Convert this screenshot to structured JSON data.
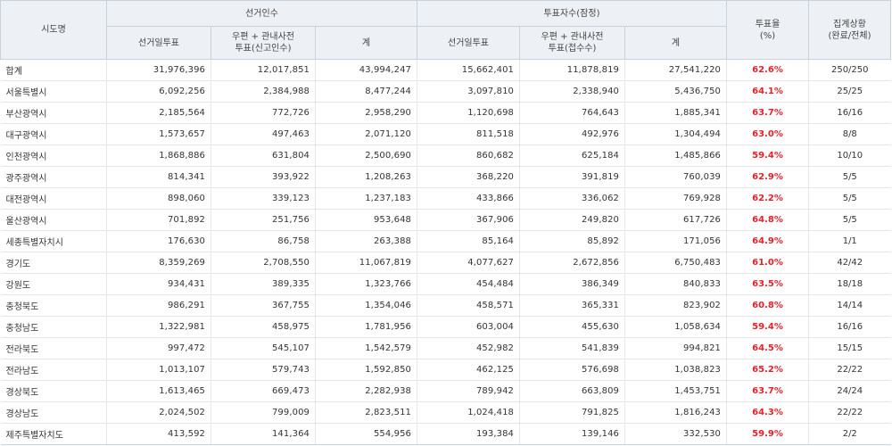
{
  "header": {
    "region": "시도명",
    "electorate_group": "선거인수",
    "voters_group": "투표자수(잠정)",
    "rate": "투표율\n(%)",
    "status": "집계상황\n(완료/전체)",
    "sub_election_day": "선거일투표",
    "sub_mail_electorate": "우편 + 관내사전\n투표(신고인수)",
    "sub_total": "계",
    "sub_election_day_2": "선거일투표",
    "sub_mail_voters": "우편 + 관내사전\n투표(접수수)",
    "sub_total_2": "계"
  },
  "rows": [
    {
      "region": "합계",
      "e_day": "31,976,396",
      "e_mail": "12,017,851",
      "e_total": "43,994,247",
      "v_day": "15,662,401",
      "v_mail": "11,878,819",
      "v_total": "27,541,220",
      "rate": "62.6%",
      "status": "250/250"
    },
    {
      "region": "서울특별시",
      "e_day": "6,092,256",
      "e_mail": "2,384,988",
      "e_total": "8,477,244",
      "v_day": "3,097,810",
      "v_mail": "2,338,940",
      "v_total": "5,436,750",
      "rate": "64.1%",
      "status": "25/25"
    },
    {
      "region": "부산광역시",
      "e_day": "2,185,564",
      "e_mail": "772,726",
      "e_total": "2,958,290",
      "v_day": "1,120,698",
      "v_mail": "764,643",
      "v_total": "1,885,341",
      "rate": "63.7%",
      "status": "16/16"
    },
    {
      "region": "대구광역시",
      "e_day": "1,573,657",
      "e_mail": "497,463",
      "e_total": "2,071,120",
      "v_day": "811,518",
      "v_mail": "492,976",
      "v_total": "1,304,494",
      "rate": "63.0%",
      "status": "8/8"
    },
    {
      "region": "인천광역시",
      "e_day": "1,868,886",
      "e_mail": "631,804",
      "e_total": "2,500,690",
      "v_day": "860,682",
      "v_mail": "625,184",
      "v_total": "1,485,866",
      "rate": "59.4%",
      "status": "10/10"
    },
    {
      "region": "광주광역시",
      "e_day": "814,341",
      "e_mail": "393,922",
      "e_total": "1,208,263",
      "v_day": "368,220",
      "v_mail": "391,819",
      "v_total": "760,039",
      "rate": "62.9%",
      "status": "5/5"
    },
    {
      "region": "대전광역시",
      "e_day": "898,060",
      "e_mail": "339,123",
      "e_total": "1,237,183",
      "v_day": "433,866",
      "v_mail": "336,062",
      "v_total": "769,928",
      "rate": "62.2%",
      "status": "5/5"
    },
    {
      "region": "울산광역시",
      "e_day": "701,892",
      "e_mail": "251,756",
      "e_total": "953,648",
      "v_day": "367,906",
      "v_mail": "249,820",
      "v_total": "617,726",
      "rate": "64.8%",
      "status": "5/5"
    },
    {
      "region": "세종특별자치시",
      "e_day": "176,630",
      "e_mail": "86,758",
      "e_total": "263,388",
      "v_day": "85,164",
      "v_mail": "85,892",
      "v_total": "171,056",
      "rate": "64.9%",
      "status": "1/1"
    },
    {
      "region": "경기도",
      "e_day": "8,359,269",
      "e_mail": "2,708,550",
      "e_total": "11,067,819",
      "v_day": "4,077,627",
      "v_mail": "2,672,856",
      "v_total": "6,750,483",
      "rate": "61.0%",
      "status": "42/42"
    },
    {
      "region": "강원도",
      "e_day": "934,431",
      "e_mail": "389,335",
      "e_total": "1,323,766",
      "v_day": "454,484",
      "v_mail": "386,349",
      "v_total": "840,833",
      "rate": "63.5%",
      "status": "18/18"
    },
    {
      "region": "충청북도",
      "e_day": "986,291",
      "e_mail": "367,755",
      "e_total": "1,354,046",
      "v_day": "458,571",
      "v_mail": "365,331",
      "v_total": "823,902",
      "rate": "60.8%",
      "status": "14/14"
    },
    {
      "region": "충청남도",
      "e_day": "1,322,981",
      "e_mail": "458,975",
      "e_total": "1,781,956",
      "v_day": "603,004",
      "v_mail": "455,630",
      "v_total": "1,058,634",
      "rate": "59.4%",
      "status": "16/16"
    },
    {
      "region": "전라북도",
      "e_day": "997,472",
      "e_mail": "545,107",
      "e_total": "1,542,579",
      "v_day": "452,982",
      "v_mail": "541,839",
      "v_total": "994,821",
      "rate": "64.5%",
      "status": "15/15"
    },
    {
      "region": "전라남도",
      "e_day": "1,013,107",
      "e_mail": "579,743",
      "e_total": "1,592,850",
      "v_day": "462,125",
      "v_mail": "576,698",
      "v_total": "1,038,823",
      "rate": "65.2%",
      "status": "22/22"
    },
    {
      "region": "경상북도",
      "e_day": "1,613,465",
      "e_mail": "669,473",
      "e_total": "2,282,938",
      "v_day": "789,942",
      "v_mail": "663,809",
      "v_total": "1,453,751",
      "rate": "63.7%",
      "status": "24/24"
    },
    {
      "region": "경상남도",
      "e_day": "2,024,502",
      "e_mail": "799,009",
      "e_total": "2,823,511",
      "v_day": "1,024,418",
      "v_mail": "791,825",
      "v_total": "1,816,243",
      "rate": "64.3%",
      "status": "22/22"
    },
    {
      "region": "제주특별자치도",
      "e_day": "413,592",
      "e_mail": "141,364",
      "e_total": "554,956",
      "v_day": "193,384",
      "v_mail": "139,146",
      "v_total": "332,530",
      "rate": "59.9%",
      "status": "2/2"
    }
  ],
  "colors": {
    "rate_text": "#e0232b",
    "header_bg": "#edf1f5",
    "border": "#c8d2dc"
  }
}
